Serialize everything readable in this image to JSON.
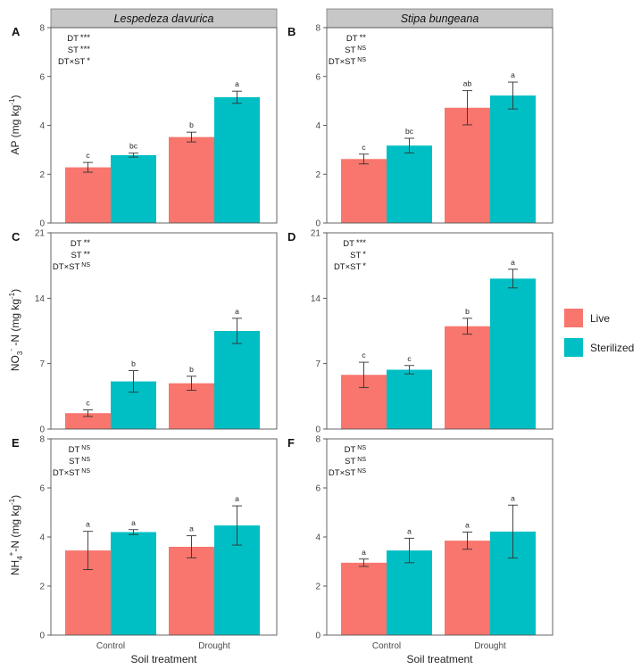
{
  "species": [
    "Lespedeza davurica",
    "Stipa bungeana"
  ],
  "x_axis_title": "Soil treatment",
  "legend": [
    {
      "label": "Live",
      "color": "#F8766D"
    },
    {
      "label": "Sterilized",
      "color": "#00BFC4"
    }
  ],
  "chart_data": [
    {
      "panel": "A",
      "type": "bar",
      "species": "Lespedeza davurica",
      "ylabel": "AP (mg kg-1)",
      "ylim": [
        0,
        8
      ],
      "yticks": [
        0,
        2,
        4,
        6,
        8
      ],
      "categories": [
        "Control",
        "Drought"
      ],
      "series": [
        {
          "name": "Live",
          "values": [
            2.28,
            3.52
          ],
          "errors": [
            0.2,
            0.2
          ],
          "letters": [
            "c",
            "b"
          ]
        },
        {
          "name": "Sterilized",
          "values": [
            2.78,
            5.15
          ],
          "errors": [
            0.08,
            0.25
          ],
          "letters": [
            "bc",
            "a"
          ]
        }
      ],
      "stats": [
        {
          "label": "DT",
          "sig": "***"
        },
        {
          "label": "ST",
          "sig": "***"
        },
        {
          "label": "DT×ST",
          "sig": "*"
        }
      ]
    },
    {
      "panel": "B",
      "type": "bar",
      "species": "Stipa bungeana",
      "ylabel": "",
      "ylim": [
        0,
        8
      ],
      "yticks": [
        0,
        2,
        4,
        6,
        8
      ],
      "categories": [
        "Control",
        "Drought"
      ],
      "series": [
        {
          "name": "Live",
          "values": [
            2.62,
            4.72
          ],
          "errors": [
            0.2,
            0.7
          ],
          "letters": [
            "c",
            "ab"
          ]
        },
        {
          "name": "Sterilized",
          "values": [
            3.17,
            5.22
          ],
          "errors": [
            0.3,
            0.55
          ],
          "letters": [
            "bc",
            "a"
          ]
        }
      ],
      "stats": [
        {
          "label": "DT",
          "sig": "**"
        },
        {
          "label": "ST",
          "sig": "NS"
        },
        {
          "label": "DT×ST",
          "sig": "NS"
        }
      ]
    },
    {
      "panel": "C",
      "type": "bar",
      "species": "Lespedeza davurica",
      "ylabel": "NO3- -N (mg kg-1)",
      "ylim": [
        0,
        21
      ],
      "yticks": [
        0,
        7,
        14,
        21
      ],
      "categories": [
        "Control",
        "Drought"
      ],
      "series": [
        {
          "name": "Live",
          "values": [
            1.7,
            4.9
          ],
          "errors": [
            0.35,
            0.75
          ],
          "letters": [
            "c",
            "b"
          ]
        },
        {
          "name": "Sterilized",
          "values": [
            5.1,
            10.5
          ],
          "errors": [
            1.15,
            1.35
          ],
          "letters": [
            "b",
            "a"
          ]
        }
      ],
      "stats": [
        {
          "label": "DT",
          "sig": "**"
        },
        {
          "label": "ST",
          "sig": "**"
        },
        {
          "label": "DT×ST",
          "sig": "NS"
        }
      ]
    },
    {
      "panel": "D",
      "type": "bar",
      "species": "Stipa bungeana",
      "ylabel": "",
      "ylim": [
        0,
        21
      ],
      "yticks": [
        0,
        7,
        14,
        21
      ],
      "categories": [
        "Control",
        "Drought"
      ],
      "series": [
        {
          "name": "Live",
          "values": [
            5.8,
            11.0
          ],
          "errors": [
            1.35,
            0.85
          ],
          "letters": [
            "c",
            "b"
          ]
        },
        {
          "name": "Sterilized",
          "values": [
            6.35,
            16.1
          ],
          "errors": [
            0.45,
            1.0
          ],
          "letters": [
            "c",
            "a"
          ]
        }
      ],
      "stats": [
        {
          "label": "DT",
          "sig": "***"
        },
        {
          "label": "ST",
          "sig": "*"
        },
        {
          "label": "DT×ST",
          "sig": "*"
        }
      ]
    },
    {
      "panel": "E",
      "type": "bar",
      "species": "Lespedeza davurica",
      "ylabel": "NH4+-N (mg kg-1)",
      "ylim": [
        0,
        8
      ],
      "yticks": [
        0,
        2,
        4,
        6,
        8
      ],
      "categories": [
        "Control",
        "Drought"
      ],
      "series": [
        {
          "name": "Live",
          "values": [
            3.45,
            3.6
          ],
          "errors": [
            0.78,
            0.45
          ],
          "letters": [
            "a",
            "a"
          ]
        },
        {
          "name": "Sterilized",
          "values": [
            4.2,
            4.47
          ],
          "errors": [
            0.1,
            0.8
          ],
          "letters": [
            "a",
            "a"
          ]
        }
      ],
      "stats": [
        {
          "label": "DT",
          "sig": "NS"
        },
        {
          "label": "ST",
          "sig": "NS"
        },
        {
          "label": "DT×ST",
          "sig": "NS"
        }
      ]
    },
    {
      "panel": "F",
      "type": "bar",
      "species": "Stipa bungeana",
      "ylabel": "",
      "ylim": [
        0,
        8
      ],
      "yticks": [
        0,
        2,
        4,
        6,
        8
      ],
      "categories": [
        "Control",
        "Drought"
      ],
      "series": [
        {
          "name": "Live",
          "values": [
            2.95,
            3.85
          ],
          "errors": [
            0.15,
            0.35
          ],
          "letters": [
            "a",
            "a"
          ]
        },
        {
          "name": "Sterilized",
          "values": [
            3.45,
            4.22
          ],
          "errors": [
            0.5,
            1.08
          ],
          "letters": [
            "a",
            "a"
          ]
        }
      ],
      "stats": [
        {
          "label": "DT",
          "sig": "NS"
        },
        {
          "label": "ST",
          "sig": "NS"
        },
        {
          "label": "DT×ST",
          "sig": "NS"
        }
      ]
    }
  ]
}
